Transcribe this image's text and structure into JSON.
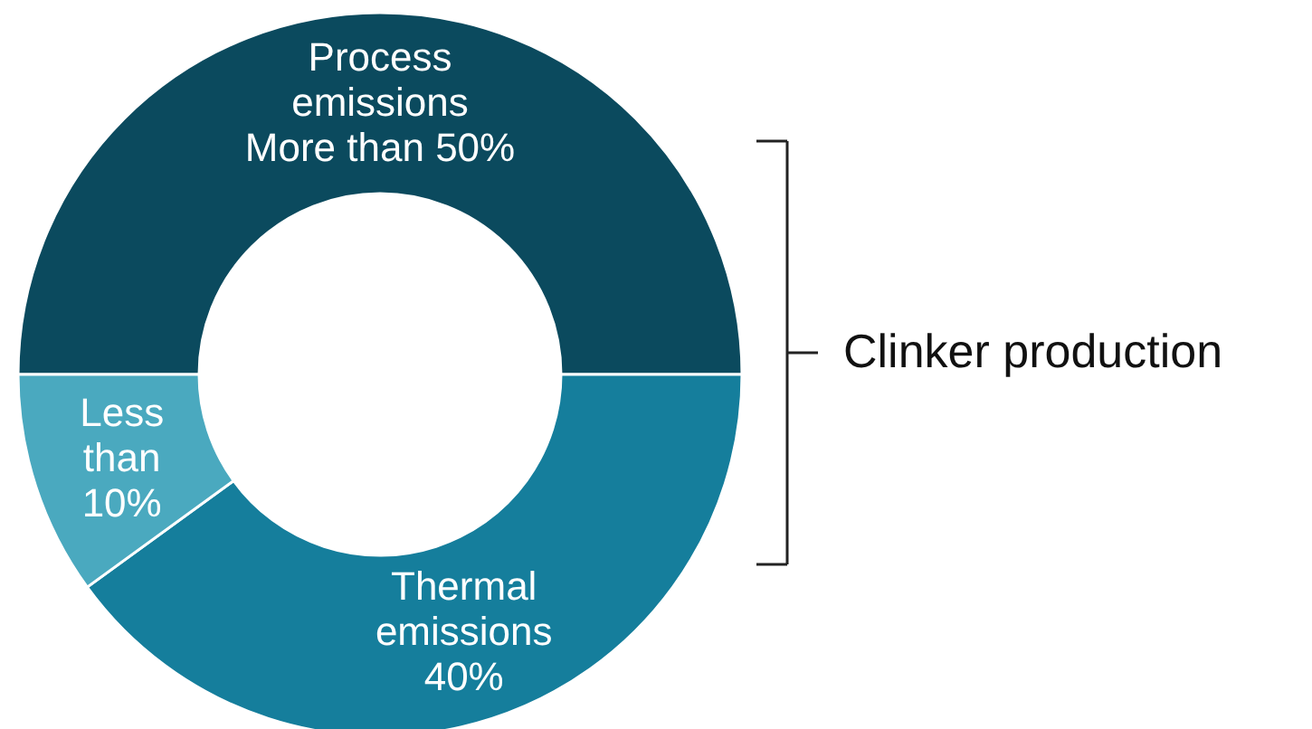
{
  "chart_data": {
    "type": "donut",
    "categories": [
      "Process\nemissions\nMore than 50%",
      "Thermal\nemissions\n40%",
      "Less\nthan\n10%"
    ],
    "values": [
      50,
      40,
      10
    ],
    "colors": [
      "#0b4a5e",
      "#157e9c",
      "#4aa9bf"
    ],
    "annotations": [
      "Clinker production"
    ]
  }
}
